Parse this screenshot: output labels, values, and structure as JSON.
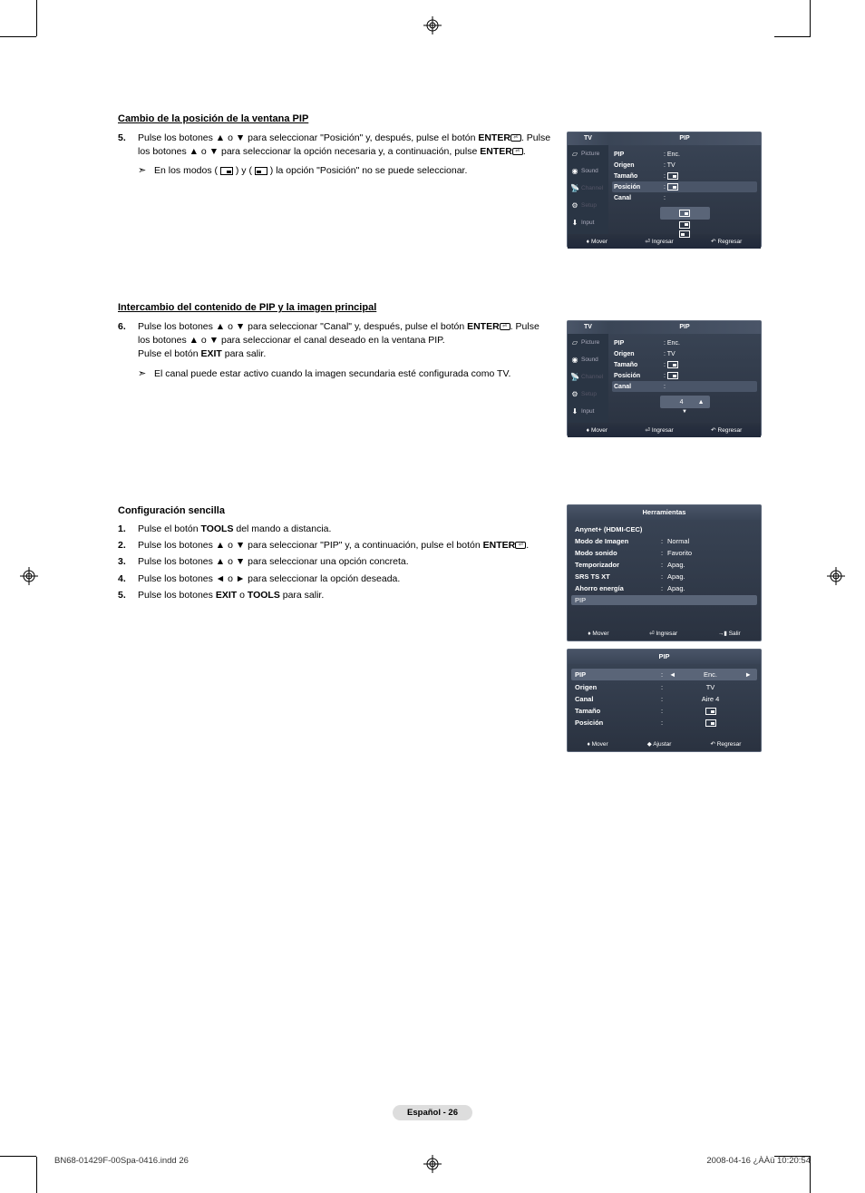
{
  "section1": {
    "title": "Cambio de la posición de la ventana PIP",
    "step_num": "5.",
    "step_text_1": "Pulse los botones ▲ o ▼ para seleccionar \"Posición\" y, después, pulse el botón ",
    "step_text_2": ". Pulse los botones ▲ o ▼ para seleccionar la opción necesaria y, a continuación, pulse ",
    "step_text_3": ".",
    "enter": "ENTER",
    "note": "En los modos (        ) y (        ) la opción \"Posición\" no se puede seleccionar."
  },
  "section2": {
    "title": "Intercambio del contenido de PIP y la imagen principal",
    "step_num": "6.",
    "step_text_1": "Pulse los botones ▲ o ▼ para seleccionar \"Canal\" y, después, pulse el botón ",
    "step_text_2": ". Pulse los botones ▲ o ▼ para seleccionar el canal deseado en la ventana PIP.",
    "step_text_3": "Pulse el botón ",
    "exit": "EXIT",
    "step_text_4": " para salir.",
    "enter": "ENTER",
    "note": "El canal puede estar activo cuando la imagen secundaria esté configurada como TV."
  },
  "section3": {
    "title": "Configuración sencilla",
    "steps": [
      {
        "num": "1.",
        "p1": "Pulse el botón ",
        "b": "TOOLS",
        "p2": " del mando a distancia."
      },
      {
        "num": "2.",
        "p1": "Pulse los botones ▲ o ▼ para seleccionar \"PIP\" y, a continuación, pulse el botón ",
        "b": "ENTER",
        "p2": "."
      },
      {
        "num": "3.",
        "p1": "Pulse los botones ▲ o ▼ para seleccionar una opción concreta.",
        "b": "",
        "p2": ""
      },
      {
        "num": "4.",
        "p1": "Pulse los botones ◄ o ► para seleccionar la opción deseada.",
        "b": "",
        "p2": ""
      },
      {
        "num": "5.",
        "p1": "Pulse los botones ",
        "b": "EXIT",
        "p2": " o ",
        "b2": "TOOLS",
        "p3": " para salir."
      }
    ]
  },
  "tvmenu": {
    "tv_label": "TV",
    "pip_label": "PIP",
    "sidebar": [
      "Picture",
      "Sound",
      "Channel",
      "Setup",
      "Input"
    ],
    "rows": {
      "pip": {
        "label": "PIP",
        "val": ": Enc."
      },
      "origen": {
        "label": "Origen",
        "val": ": TV"
      },
      "tamano": {
        "label": "Tamaño",
        "val": ":"
      },
      "posicion": {
        "label": "Posición",
        "val": ":"
      },
      "canal": {
        "label": "Canal",
        "val": ":"
      },
      "canal_val": "4"
    },
    "footer": {
      "mover": "Mover",
      "ingresar": "Ingresar",
      "regresar": "Regresar"
    }
  },
  "tools": {
    "title": "Herramientas",
    "rows": [
      {
        "label": "Anynet+ (HDMI-CEC)",
        "val": ""
      },
      {
        "label": "Modo de Imagen",
        "val": "Normal"
      },
      {
        "label": "Modo sonido",
        "val": "Favorito"
      },
      {
        "label": "Temporizador",
        "val": "Apag."
      },
      {
        "label": "SRS TS XT",
        "val": "Apag."
      },
      {
        "label": "Ahorro energía",
        "val": "Apag."
      }
    ],
    "hl": "PIP",
    "footer": {
      "mover": "Mover",
      "ingresar": "Ingresar",
      "salir": "Salir"
    }
  },
  "pipsub": {
    "title": "PIP",
    "rows": [
      {
        "label": "PIP",
        "val": "Enc.",
        "sel": true
      },
      {
        "label": "Origen",
        "val": "TV"
      },
      {
        "label": "Canal",
        "val": "Aire 4"
      },
      {
        "label": "Tamaño",
        "val": ""
      },
      {
        "label": "Posición",
        "val": ""
      }
    ],
    "footer": {
      "mover": "Mover",
      "ajustar": "Ajustar",
      "regresar": "Regresar"
    }
  },
  "page_badge": "Español - 26",
  "footer_left": "BN68-01429F-00Spa-0416.indd   26",
  "footer_right": "2008-04-16   ¿ÀÀü 10:20:54"
}
